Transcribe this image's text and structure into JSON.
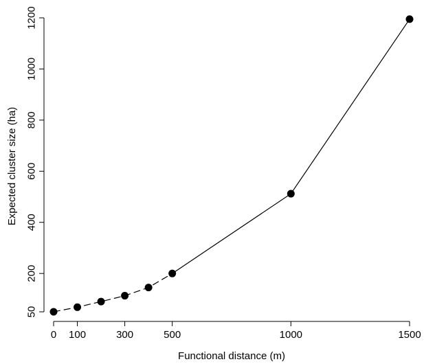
{
  "chart_data": {
    "type": "line",
    "xlabel": "Functional distance (m)",
    "ylabel": "Expected cluster size (ha)",
    "xlim": [
      0,
      1500
    ],
    "ylim": [
      50,
      1200
    ],
    "x_ticks": [
      0,
      100,
      300,
      500,
      1000,
      1500
    ],
    "y_ticks": [
      50,
      200,
      400,
      600,
      800,
      1000,
      1200
    ],
    "grid": false,
    "series": [
      {
        "x": [
          0,
          100,
          200,
          300,
          400,
          500,
          1000,
          1500
        ],
        "y": [
          50,
          68,
          90,
          113,
          145,
          200,
          512,
          1195
        ],
        "dashed_until_x": 500
      }
    ]
  }
}
